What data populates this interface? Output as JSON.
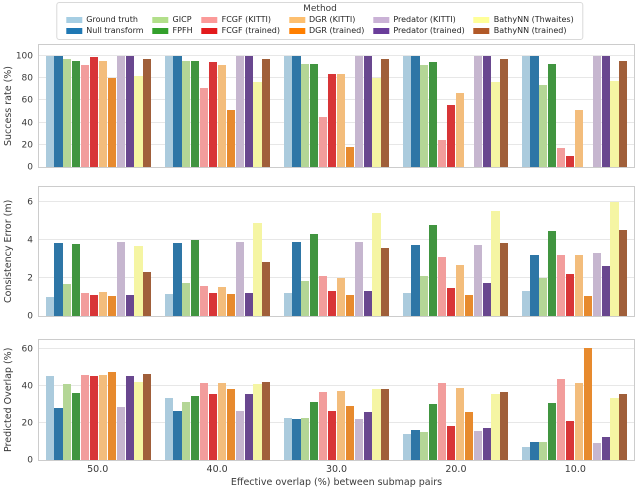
{
  "chart_data": {
    "type": "bar",
    "grid": true,
    "legend": {
      "title": "Method",
      "position": "top",
      "items": [
        {
          "label": "Ground truth",
          "color": "#a6cee3",
          "bar_color": "#abcbdd"
        },
        {
          "label": "Null transform",
          "color": "#1f78b4",
          "bar_color": "#2e76a6"
        },
        {
          "label": "GICP",
          "color": "#b2df8a",
          "bar_color": "#b4d696"
        },
        {
          "label": "FPFH",
          "color": "#33a02c",
          "bar_color": "#419540"
        },
        {
          "label": "FCGF (KITTI)",
          "color": "#fb9a99",
          "bar_color": "#f29d9c"
        },
        {
          "label": "FCGF (trained)",
          "color": "#e31a1c",
          "bar_color": "#d83537"
        },
        {
          "label": "DGR (KITTI)",
          "color": "#fdbf6f",
          "bar_color": "#f3bd7c"
        },
        {
          "label": "DGR (trained)",
          "color": "#ff7f00",
          "bar_color": "#e78a2e"
        },
        {
          "label": "Predator (KITTI)",
          "color": "#cab2d6",
          "bar_color": "#c6b6cf"
        },
        {
          "label": "Predator (trained)",
          "color": "#6a3d9a",
          "bar_color": "#69478f"
        },
        {
          "label": "BathyNN (Thwaites)",
          "color": "#ffff99",
          "bar_color": "#f5f5a3"
        },
        {
          "label": "BathyNN (trained)",
          "color": "#b15928",
          "bar_color": "#a05f3a"
        }
      ]
    },
    "categories": [
      "50.0",
      "40.0",
      "30.0",
      "20.0",
      "10.0"
    ],
    "xlabel": "Effective overlap (%) between submap pairs",
    "subplots": [
      {
        "ylabel": "Success rate (%)",
        "ylim": [
          0,
          110
        ],
        "yticks": [
          0,
          20,
          40,
          60,
          80,
          100
        ],
        "series": [
          {
            "name": "Ground truth",
            "values": [
              100,
              100,
              100,
              100,
              100
            ]
          },
          {
            "name": "Null transform",
            "values": [
              100,
              100,
              100,
              100,
              100
            ]
          },
          {
            "name": "GICP",
            "values": [
              97,
              96,
              93,
              92,
              74
            ]
          },
          {
            "name": "FPFH",
            "values": [
              95.5,
              96,
              93,
              94.5,
              93
            ]
          },
          {
            "name": "FCGF (KITTI)",
            "values": [
              92,
              71,
              45,
              24,
              17
            ]
          },
          {
            "name": "FCGF (trained)",
            "values": [
              99.5,
              95,
              84,
              56,
              10
            ]
          },
          {
            "name": "DGR (KITTI)",
            "values": [
              96,
              92,
              84,
              67,
              51
            ]
          },
          {
            "name": "DGR (trained)",
            "values": [
              80,
              51,
              18,
              0,
              0
            ]
          },
          {
            "name": "Predator (KITTI)",
            "values": [
              100,
              100,
              100,
              100,
              100
            ]
          },
          {
            "name": "Predator (trained)",
            "values": [
              100,
              100,
              100,
              100,
              100
            ]
          },
          {
            "name": "BathyNN (Thwaites)",
            "values": [
              82,
              77,
              80,
              77,
              78
            ]
          },
          {
            "name": "BathyNN (trained)",
            "values": [
              97.5,
              97,
              97.5,
              97.5,
              96
            ]
          }
        ]
      },
      {
        "ylabel": "Consistency Error (m)",
        "ylim": [
          0,
          6.78
        ],
        "yticks": [
          0,
          2,
          4,
          6
        ],
        "series": [
          {
            "name": "Ground truth",
            "values": [
              1.0,
              1.15,
              1.2,
              1.2,
              1.3
            ]
          },
          {
            "name": "Null transform",
            "values": [
              3.85,
              3.85,
              3.9,
              3.75,
              3.2
            ]
          },
          {
            "name": "GICP",
            "values": [
              1.7,
              1.75,
              1.85,
              2.1,
              2.0
            ]
          },
          {
            "name": "FPFH",
            "values": [
              3.8,
              4.0,
              4.3,
              4.8,
              4.45
            ]
          },
          {
            "name": "FCGF (KITTI)",
            "values": [
              1.2,
              1.6,
              2.1,
              3.1,
              3.2
            ]
          },
          {
            "name": "FCGF (trained)",
            "values": [
              1.1,
              1.2,
              1.3,
              1.45,
              2.2
            ]
          },
          {
            "name": "DGR (KITTI)",
            "values": [
              1.25,
              1.55,
              2.0,
              2.7,
              3.2
            ]
          },
          {
            "name": "DGR (trained)",
            "values": [
              1.05,
              1.15,
              1.1,
              1.1,
              1.05
            ]
          },
          {
            "name": "Predator (KITTI)",
            "values": [
              3.9,
              3.9,
              3.9,
              3.75,
              3.3
            ]
          },
          {
            "name": "Predator (trained)",
            "values": [
              1.1,
              1.2,
              1.3,
              1.75,
              2.65
            ]
          },
          {
            "name": "BathyNN (Thwaites)",
            "values": [
              3.7,
              4.9,
              5.4,
              5.5,
              6.0
            ]
          },
          {
            "name": "BathyNN (trained)",
            "values": [
              2.3,
              2.85,
              3.55,
              3.85,
              4.5
            ]
          }
        ]
      },
      {
        "ylabel": "Predicted Overlap (%)",
        "ylim": [
          0,
          65
        ],
        "yticks": [
          0,
          20,
          40,
          60
        ],
        "series": [
          {
            "name": "Ground truth",
            "values": [
              45.5,
              33.5,
              22.5,
              14,
              7
            ]
          },
          {
            "name": "Null transform",
            "values": [
              28,
              26.5,
              22,
              16,
              10
            ]
          },
          {
            "name": "GICP",
            "values": [
              41,
              31.5,
              22.5,
              15,
              9.5
            ]
          },
          {
            "name": "FPFH",
            "values": [
              36.5,
              34.5,
              31.5,
              30.5,
              31
            ]
          },
          {
            "name": "FCGF (KITTI)",
            "values": [
              46,
              41.5,
              37,
              41.5,
              44
            ]
          },
          {
            "name": "FCGF (trained)",
            "values": [
              45.5,
              36,
              26.5,
              18.5,
              21
            ]
          },
          {
            "name": "DGR (KITTI)",
            "values": [
              46,
              41.5,
              37.5,
              39,
              41.5
            ]
          },
          {
            "name": "DGR (trained)",
            "values": [
              47.5,
              38.5,
              29,
              26,
              60.5
            ]
          },
          {
            "name": "Predator (KITTI)",
            "values": [
              28.5,
              26.5,
              22,
              15.5,
              9
            ]
          },
          {
            "name": "Predator (trained)",
            "values": [
              45.5,
              35.5,
              26,
              17.5,
              12.5
            ]
          },
          {
            "name": "BathyNN (Thwaites)",
            "values": [
              42.5,
              41,
              38.5,
              35.5,
              33.5
            ]
          },
          {
            "name": "BathyNN (trained)",
            "values": [
              46.5,
              42,
              38.5,
              37,
              36
            ]
          }
        ]
      }
    ]
  }
}
